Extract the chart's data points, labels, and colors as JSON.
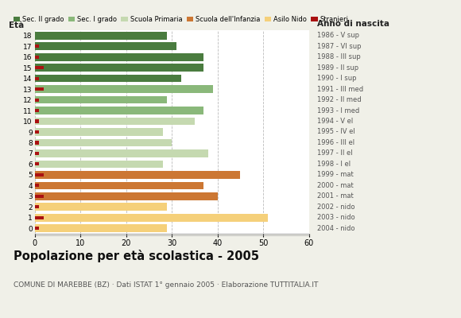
{
  "ages": [
    18,
    17,
    16,
    15,
    14,
    13,
    12,
    11,
    10,
    9,
    8,
    7,
    6,
    5,
    4,
    3,
    2,
    1,
    0
  ],
  "right_labels": [
    "1986 - V sup",
    "1987 - VI sup",
    "1988 - III sup",
    "1989 - II sup",
    "1990 - I sup",
    "1991 - III med",
    "1992 - II med",
    "1993 - I med",
    "1994 - V el",
    "1995 - IV el",
    "1996 - III el",
    "1997 - II el",
    "1998 - I el",
    "1999 - mat",
    "2000 - mat",
    "2001 - mat",
    "2002 - nido",
    "2003 - nido",
    "2004 - nido"
  ],
  "bar_values": [
    29,
    31,
    37,
    37,
    32,
    39,
    29,
    37,
    35,
    28,
    30,
    38,
    28,
    45,
    37,
    40,
    29,
    51,
    29
  ],
  "stranieri_values": [
    0,
    1,
    1,
    2,
    1,
    2,
    1,
    1,
    1,
    1,
    1,
    1,
    1,
    2,
    1,
    2,
    1,
    2,
    1
  ],
  "bar_colors": [
    "#4a7c3f",
    "#4a7c3f",
    "#4a7c3f",
    "#4a7c3f",
    "#4a7c3f",
    "#8ab87a",
    "#8ab87a",
    "#8ab87a",
    "#c5d9b0",
    "#c5d9b0",
    "#c5d9b0",
    "#c5d9b0",
    "#c5d9b0",
    "#cc7733",
    "#cc7733",
    "#cc7733",
    "#f5d07a",
    "#f5d07a",
    "#f5d07a"
  ],
  "legend_labels": [
    "Sec. II grado",
    "Sec. I grado",
    "Scuola Primaria",
    "Scuola dell'Infanzia",
    "Asilo Nido",
    "Stranieri"
  ],
  "legend_colors": [
    "#4a7c3f",
    "#8ab87a",
    "#c5d9b0",
    "#cc7733",
    "#f5d07a",
    "#aa1111"
  ],
  "stranieri_color": "#aa1111",
  "title": "Popolazione per età scolastica - 2005",
  "subtitle": "COMUNE DI MAREBBE (BZ) · Dati ISTAT 1° gennaio 2005 · Elaborazione TUTTITALIA.IT",
  "xlabel_left": "Età",
  "xlabel_right": "Anno di nascita",
  "xlim": [
    0,
    60
  ],
  "xticks": [
    0,
    10,
    20,
    30,
    40,
    50,
    60
  ],
  "bg_color": "#f0f0e8",
  "plot_bg": "#ffffff",
  "grid_color": "#bbbbbb"
}
